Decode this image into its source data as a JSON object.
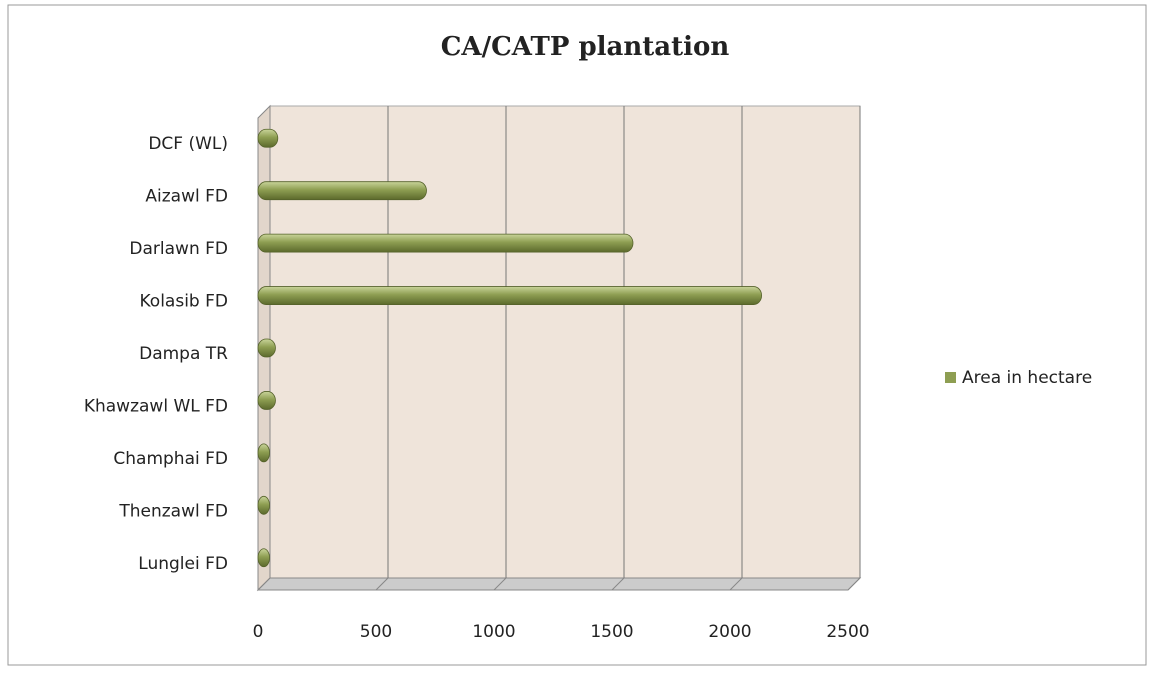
{
  "chart_data": {
    "type": "bar",
    "orientation": "horizontal",
    "title": "CA/CATP plantation",
    "categories": [
      "DCF (WL)",
      "Aizawl FD",
      "Darlawn FD",
      "Kolasib FD",
      "Dampa TR",
      "Khawzawl WL FD",
      "Champhai FD",
      "Thenzawl FD",
      "Lunglei FD"
    ],
    "series": [
      {
        "name": "Area in hectare",
        "color": "#8e9e52",
        "values": [
          50,
          680,
          1555,
          2100,
          40,
          40,
          15,
          15,
          15
        ]
      }
    ],
    "xlim": [
      0,
      2500
    ],
    "xticks": [
      0,
      500,
      1000,
      1500,
      2000,
      2500
    ],
    "grid": true,
    "legend": "right"
  }
}
